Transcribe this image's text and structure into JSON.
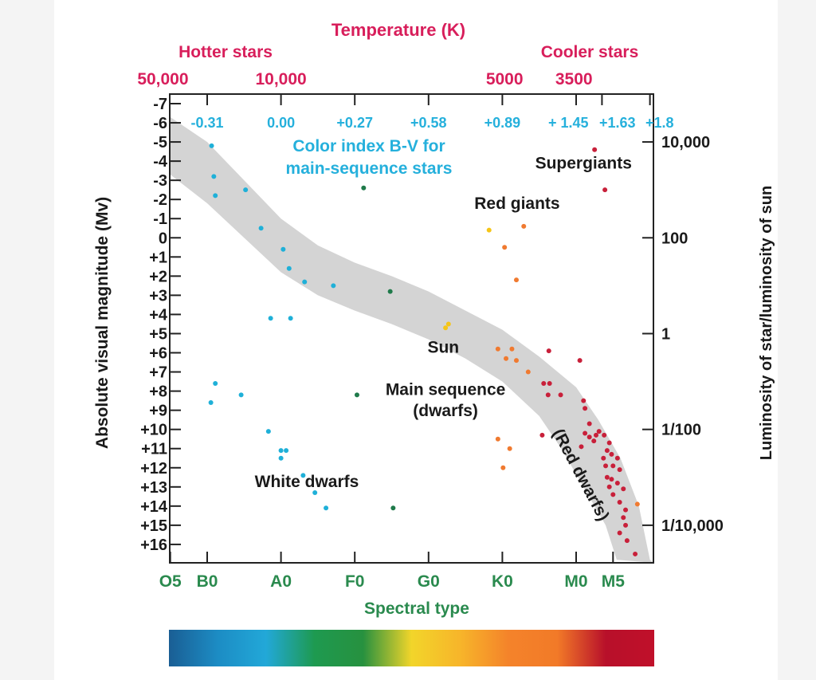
{
  "chart_data": {
    "type": "scatter",
    "title": "Temperature (K)",
    "hotter_label": "Hotter stars",
    "cooler_label": "Cooler stars",
    "temperature_ticks": [
      {
        "label": "50,000",
        "s": 0.4
      },
      {
        "label": "10,000",
        "s": 2.0
      },
      {
        "label": "5000",
        "s": 5.03
      },
      {
        "label": "3500",
        "s": 5.97
      }
    ],
    "color_index_title_1": "Color index B-V for",
    "color_index_title_2": "main-sequence stars",
    "color_index_ticks": [
      {
        "label": "-0.31",
        "s": 1.0
      },
      {
        "label": "0.00",
        "s": 2.0
      },
      {
        "label": "+0.27",
        "s": 3.0
      },
      {
        "label": "+0.58",
        "s": 4.0
      },
      {
        "label": "+0.89",
        "s": 5.0
      },
      {
        "label": "+ 1.45",
        "s": 6.0
      },
      {
        "label": "+1.63",
        "s": 6.35
      },
      {
        "label": "+1.8",
        "s": 7.0
      }
    ],
    "xlabel": "Spectral type",
    "x_ticks": [
      {
        "label": "O5",
        "s": 0.5
      },
      {
        "label": "B0",
        "s": 1.0
      },
      {
        "label": "A0",
        "s": 2.0
      },
      {
        "label": "F0",
        "s": 3.0
      },
      {
        "label": "G0",
        "s": 4.0
      },
      {
        "label": "K0",
        "s": 5.0
      },
      {
        "label": "M0",
        "s": 6.0
      },
      {
        "label": "M5",
        "s": 6.5
      }
    ],
    "xlim": [
      0.5,
      7.0
    ],
    "ylabel": "Absolute visual magnitude (Mv)",
    "ylim": [
      -7,
      17
    ],
    "y_inverted": true,
    "y_ticks": [
      "-7",
      "-6",
      "-5",
      "-4",
      "-3",
      "-2",
      "-1",
      "0",
      "+1",
      "+2",
      "+3",
      "+4",
      "+5",
      "+6",
      "+7",
      "+8",
      "+9",
      "+10",
      "+11",
      "+12",
      "+13",
      "+14",
      "+15",
      "+16"
    ],
    "y2label": "Luminosity of star/luminosity of sun",
    "y2_ticks": [
      {
        "label": "10,000",
        "mag": -5
      },
      {
        "label": "100",
        "mag": 0
      },
      {
        "label": "1",
        "mag": 5
      },
      {
        "label": "1/100",
        "mag": 10
      },
      {
        "label": "1/10,000",
        "mag": 15
      }
    ],
    "annotations": [
      {
        "text": "Supergiants",
        "s": 6.1,
        "mag": -3.6
      },
      {
        "text": "Red giants",
        "s": 5.2,
        "mag": -1.5
      },
      {
        "text": "Sun",
        "s": 4.2,
        "mag": 6.0
      },
      {
        "text": "Main sequence",
        "s": 4.23,
        "mag": 8.2
      },
      {
        "text": "(dwarfs)",
        "s": 4.23,
        "mag": 9.3
      },
      {
        "text": "White dwarfs",
        "s": 2.35,
        "mag": 13.0
      },
      {
        "text": "(Red dwarfs)",
        "s": 6.0,
        "mag": 12.5
      }
    ],
    "main_sequence_band": {
      "upper": [
        [
          0.5,
          -6.3
        ],
        [
          1.0,
          -5.0
        ],
        [
          1.5,
          -3.0
        ],
        [
          2.0,
          -1.0
        ],
        [
          2.5,
          0.4
        ],
        [
          3.0,
          1.3
        ],
        [
          3.5,
          2.0
        ],
        [
          4.0,
          2.8
        ],
        [
          4.5,
          3.8
        ],
        [
          5.0,
          4.8
        ],
        [
          5.5,
          6.2
        ],
        [
          6.0,
          7.8
        ],
        [
          6.3,
          9.5
        ],
        [
          6.6,
          11.5
        ],
        [
          6.85,
          14.0
        ],
        [
          7.0,
          16.8
        ]
      ],
      "lower": [
        [
          0.5,
          -3.3
        ],
        [
          1.0,
          -1.8
        ],
        [
          1.5,
          0.0
        ],
        [
          2.0,
          1.8
        ],
        [
          2.5,
          3.0
        ],
        [
          3.0,
          3.8
        ],
        [
          3.5,
          4.5
        ],
        [
          4.0,
          5.3
        ],
        [
          4.5,
          6.3
        ],
        [
          5.0,
          7.5
        ],
        [
          5.5,
          9.3
        ],
        [
          5.8,
          11.0
        ],
        [
          6.1,
          13.0
        ],
        [
          6.4,
          15.0
        ],
        [
          6.55,
          16.8
        ]
      ],
      "color": "#d4d4d4"
    },
    "series": [
      {
        "color": "#1fb0d8",
        "points": [
          [
            1.06,
            -4.8
          ],
          [
            1.09,
            -3.2
          ],
          [
            1.11,
            -2.2
          ],
          [
            1.52,
            -2.5
          ],
          [
            1.73,
            -0.5
          ],
          [
            2.03,
            0.6
          ],
          [
            2.11,
            1.6
          ],
          [
            2.32,
            2.3
          ],
          [
            2.71,
            2.5
          ],
          [
            1.86,
            4.2
          ],
          [
            2.13,
            4.2
          ],
          [
            1.11,
            7.6
          ],
          [
            1.46,
            8.2
          ],
          [
            1.05,
            8.6
          ],
          [
            1.83,
            10.1
          ],
          [
            2.0,
            11.1
          ],
          [
            2.07,
            11.1
          ],
          [
            2.0,
            11.5
          ],
          [
            2.3,
            12.4
          ],
          [
            2.46,
            13.3
          ],
          [
            2.61,
            14.1
          ]
        ]
      },
      {
        "color": "#1f7a4a",
        "points": [
          [
            3.12,
            -2.6
          ],
          [
            3.48,
            2.8
          ],
          [
            3.03,
            8.2
          ],
          [
            3.52,
            14.1
          ]
        ]
      },
      {
        "color": "#f5c518",
        "points": [
          [
            4.23,
            4.7
          ],
          [
            4.27,
            4.5
          ],
          [
            4.82,
            -0.4
          ]
        ]
      },
      {
        "color": "#f07a30",
        "points": [
          [
            5.29,
            -0.6
          ],
          [
            5.03,
            0.5
          ],
          [
            5.19,
            2.2
          ],
          [
            4.94,
            5.8
          ],
          [
            5.13,
            5.8
          ],
          [
            5.05,
            6.3
          ],
          [
            5.19,
            6.4
          ],
          [
            5.35,
            7.0
          ],
          [
            4.94,
            10.5
          ],
          [
            5.1,
            11.0
          ],
          [
            5.01,
            12.0
          ],
          [
            6.83,
            13.9
          ]
        ]
      },
      {
        "color": "#c8203a",
        "points": [
          [
            6.25,
            -4.6
          ],
          [
            6.39,
            -2.5
          ],
          [
            5.63,
            5.9
          ],
          [
            6.05,
            6.4
          ],
          [
            5.56,
            7.6
          ],
          [
            5.64,
            7.6
          ],
          [
            5.62,
            8.2
          ],
          [
            5.79,
            8.2
          ],
          [
            6.1,
            8.5
          ],
          [
            6.12,
            8.9
          ],
          [
            6.18,
            9.7
          ],
          [
            5.54,
            10.3
          ],
          [
            6.12,
            10.2
          ],
          [
            6.18,
            10.4
          ],
          [
            6.27,
            10.3
          ],
          [
            6.38,
            10.3
          ],
          [
            6.24,
            10.6
          ],
          [
            6.45,
            10.7
          ],
          [
            6.42,
            11.1
          ],
          [
            6.48,
            11.3
          ],
          [
            6.37,
            11.5
          ],
          [
            6.56,
            11.5
          ],
          [
            6.4,
            11.9
          ],
          [
            6.5,
            11.9
          ],
          [
            6.59,
            12.1
          ],
          [
            6.42,
            12.5
          ],
          [
            6.48,
            12.6
          ],
          [
            6.56,
            12.8
          ],
          [
            6.45,
            13.0
          ],
          [
            6.64,
            13.1
          ],
          [
            6.5,
            13.4
          ],
          [
            6.59,
            13.8
          ],
          [
            6.67,
            14.2
          ],
          [
            6.64,
            14.6
          ],
          [
            6.67,
            15.0
          ],
          [
            6.59,
            15.4
          ],
          [
            6.69,
            15.8
          ],
          [
            6.8,
            16.5
          ],
          [
            6.31,
            10.1
          ],
          [
            6.07,
            10.9
          ]
        ]
      }
    ],
    "colorbar": [
      "#1a5e94",
      "#1c8cc4",
      "#22a8d8",
      "#1e9a50",
      "#27913f",
      "#f2d52a",
      "#f7b52a",
      "#f4832a",
      "#f27a28",
      "#b8102a",
      "#c0102a"
    ],
    "colors": {
      "temperature": "#d81e5b",
      "color_index": "#25b0dc",
      "spectral": "#2a8a4e",
      "text": "#1a1a1a"
    }
  }
}
